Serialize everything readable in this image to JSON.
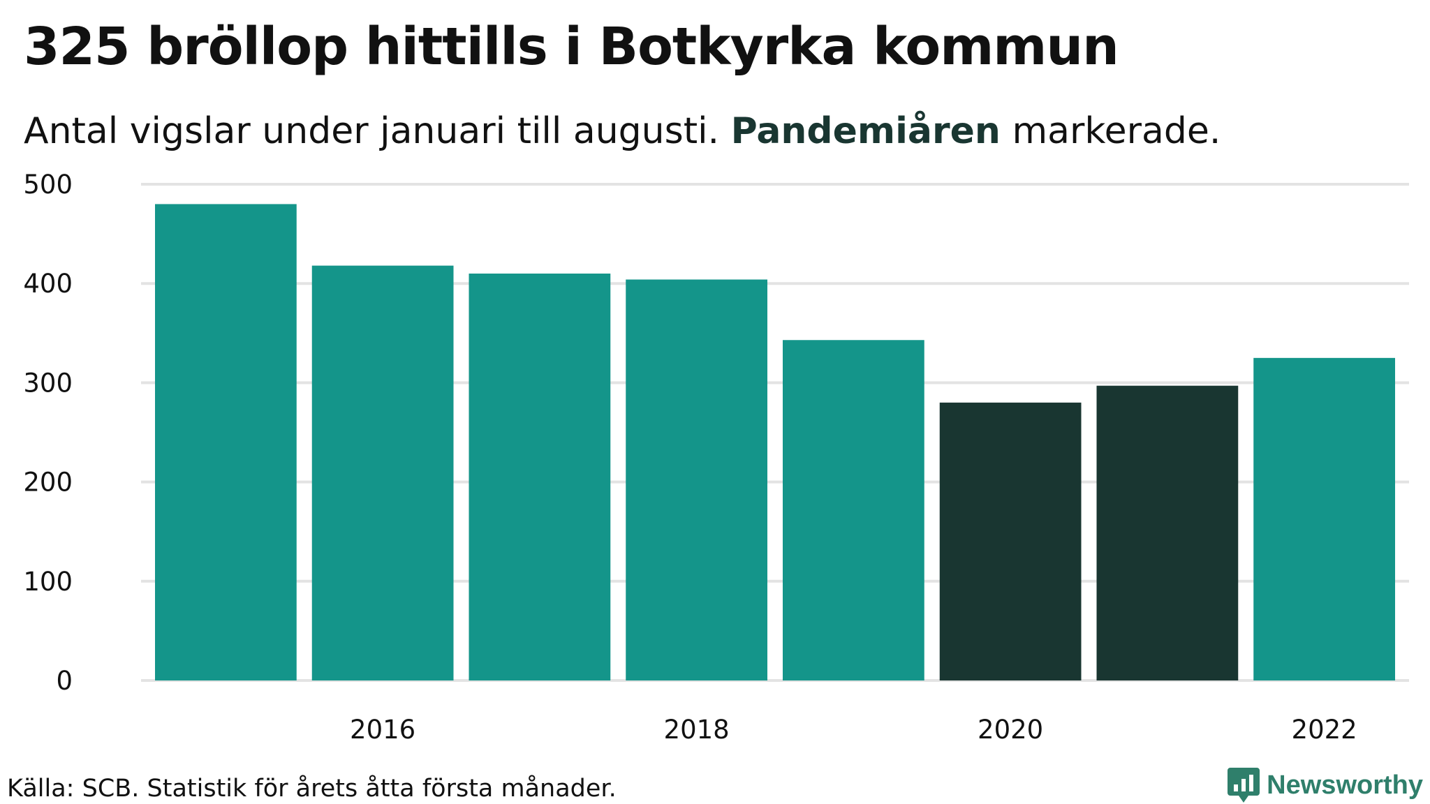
{
  "title": "325 bröllop hittills i Botkyrka kommun",
  "subtitle": {
    "before": "Antal vigslar under januari till augusti. ",
    "highlight": "Pandemiåren",
    "after": " markerade."
  },
  "source": "Källa: SCB. Statistik för årets åtta första månader.",
  "brand": {
    "name": "Newsworthy",
    "color": "#2f7f6b"
  },
  "colors": {
    "normal": "#14958a",
    "pandemic": "#193631",
    "grid": "#e3e3e3",
    "text": "#111111"
  },
  "chart_data": {
    "type": "bar",
    "title": "325 bröllop hittills i Botkyrka kommun",
    "subtitle": "Antal vigslar under januari till augusti. Pandemiåren markerade.",
    "xlabel": "",
    "ylabel": "",
    "categories": [
      "2015",
      "2016",
      "2017",
      "2018",
      "2019",
      "2020",
      "2021",
      "2022"
    ],
    "values": [
      480,
      418,
      410,
      404,
      343,
      280,
      297,
      325
    ],
    "highlighted": [
      "2020",
      "2021"
    ],
    "highlight_label": "Pandemiåren",
    "ylim": [
      0,
      500
    ],
    "yticks": [
      0,
      100,
      200,
      300,
      400,
      500
    ],
    "xticks": [
      "2016",
      "2018",
      "2020",
      "2022"
    ],
    "grid": true,
    "legend": "none"
  }
}
